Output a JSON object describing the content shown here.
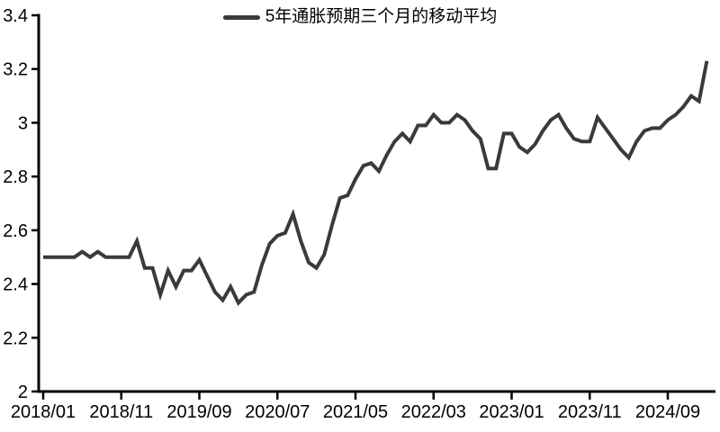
{
  "chart_data": {
    "type": "line",
    "title": "",
    "legend_label": "5年通胀预期三个月的移动平均",
    "legend_position": "top-center",
    "grid": false,
    "line_color": "#3a3a3c",
    "axis_color": "#000000",
    "ylim": [
      2,
      3.4
    ],
    "ytick_labels": [
      "2",
      "2.2",
      "2.4",
      "2.6",
      "2.8",
      "3",
      "3.2",
      "3.4"
    ],
    "xtick_indices": [
      0,
      10,
      20,
      30,
      40,
      50,
      60,
      70,
      80
    ],
    "xtick_labels": [
      "2018/01",
      "2018/11",
      "2019/09",
      "2020/07",
      "2021/05",
      "2022/03",
      "2023/01",
      "2023/11",
      "2024/09"
    ],
    "x": [
      "2018/01",
      "2018/02",
      "2018/03",
      "2018/04",
      "2018/05",
      "2018/06",
      "2018/07",
      "2018/08",
      "2018/09",
      "2018/10",
      "2018/11",
      "2018/12",
      "2019/01",
      "2019/02",
      "2019/03",
      "2019/04",
      "2019/05",
      "2019/06",
      "2019/07",
      "2019/08",
      "2019/09",
      "2019/10",
      "2019/11",
      "2019/12",
      "2020/01",
      "2020/02",
      "2020/03",
      "2020/04",
      "2020/05",
      "2020/06",
      "2020/07",
      "2020/08",
      "2020/09",
      "2020/10",
      "2020/11",
      "2020/12",
      "2021/01",
      "2021/02",
      "2021/03",
      "2021/04",
      "2021/05",
      "2021/06",
      "2021/07",
      "2021/08",
      "2021/09",
      "2021/10",
      "2021/11",
      "2021/12",
      "2022/01",
      "2022/02",
      "2022/03",
      "2022/04",
      "2022/05",
      "2022/06",
      "2022/07",
      "2022/08",
      "2022/09",
      "2022/10",
      "2022/11",
      "2022/12",
      "2023/01",
      "2023/02",
      "2023/03",
      "2023/04",
      "2023/05",
      "2023/06",
      "2023/07",
      "2023/08",
      "2023/09",
      "2023/10",
      "2023/11",
      "2023/12",
      "2024/01",
      "2024/02",
      "2024/03",
      "2024/04",
      "2024/05",
      "2024/06",
      "2024/07",
      "2024/08",
      "2024/09",
      "2024/10",
      "2024/11",
      "2024/12",
      "2025/01",
      "2025/02"
    ],
    "values": [
      2.5,
      2.5,
      2.5,
      2.5,
      2.5,
      2.52,
      2.5,
      2.52,
      2.5,
      2.5,
      2.5,
      2.5,
      2.56,
      2.46,
      2.46,
      2.36,
      2.45,
      2.39,
      2.45,
      2.45,
      2.49,
      2.43,
      2.37,
      2.34,
      2.39,
      2.33,
      2.36,
      2.37,
      2.47,
      2.55,
      2.58,
      2.59,
      2.66,
      2.56,
      2.48,
      2.46,
      2.51,
      2.62,
      2.72,
      2.73,
      2.79,
      2.84,
      2.85,
      2.82,
      2.88,
      2.93,
      2.96,
      2.93,
      2.99,
      2.99,
      3.03,
      3.0,
      3.0,
      3.03,
      3.01,
      2.97,
      2.94,
      2.83,
      2.83,
      2.96,
      2.96,
      2.91,
      2.89,
      2.92,
      2.97,
      3.01,
      3.03,
      2.98,
      2.94,
      2.93,
      2.93,
      3.02,
      2.98,
      2.94,
      2.9,
      2.87,
      2.93,
      2.97,
      2.98,
      2.98,
      3.01,
      3.03,
      3.06,
      3.1,
      3.08,
      3.23
    ]
  }
}
